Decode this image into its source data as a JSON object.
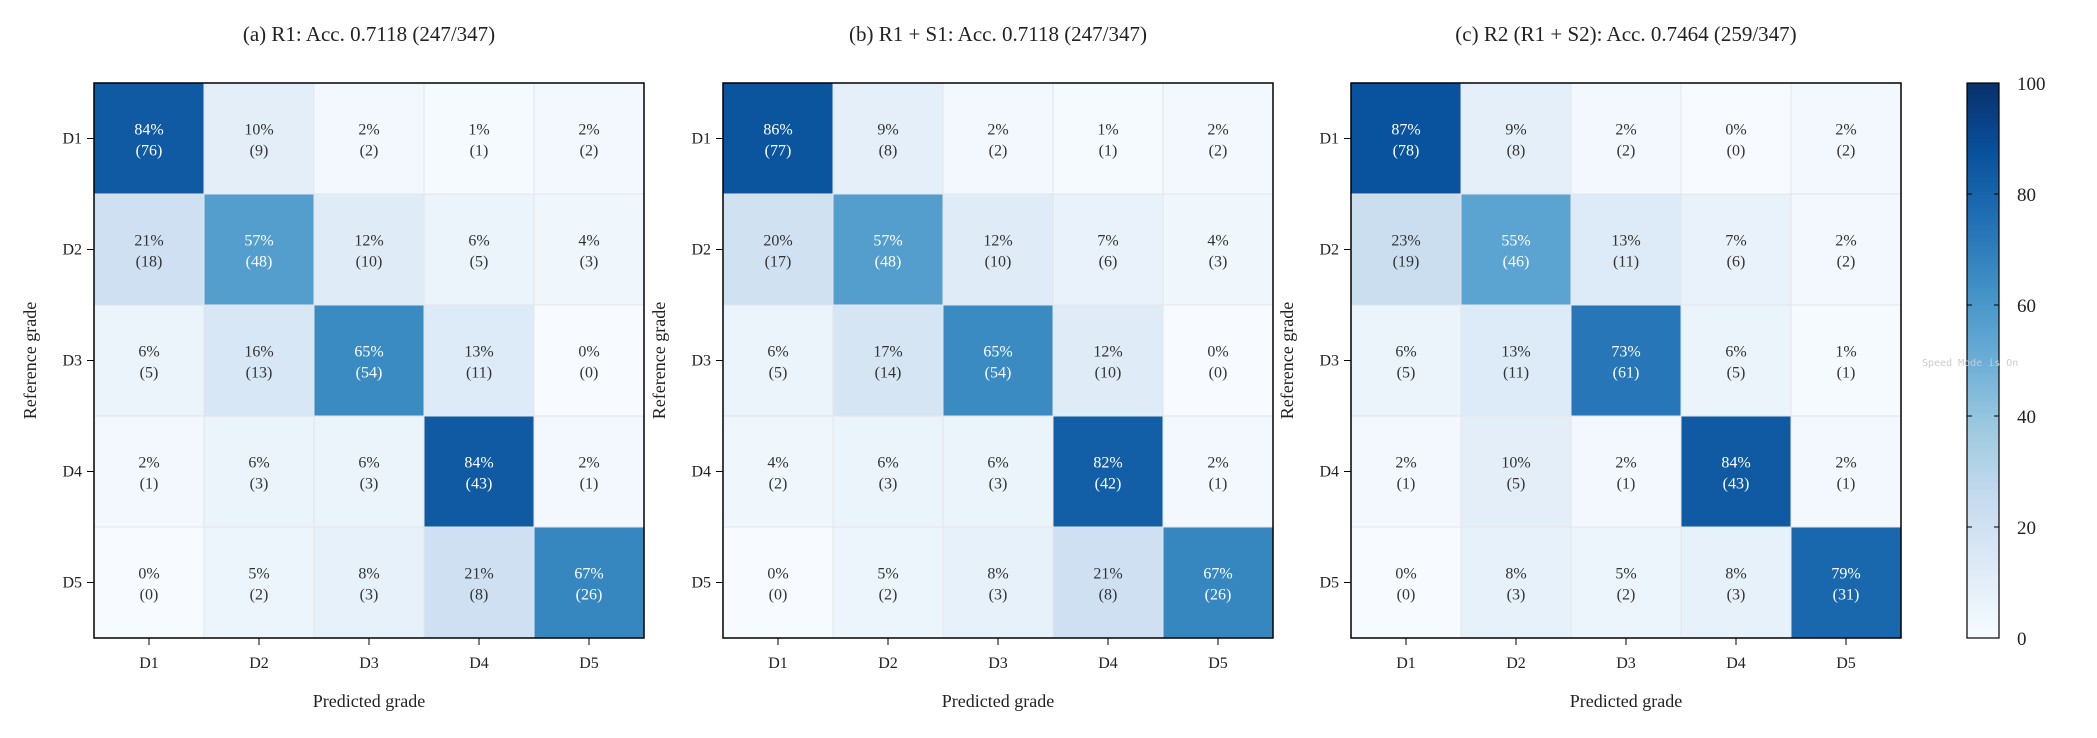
{
  "chart_data": [
    {
      "type": "heatmap",
      "title": "(a) R1: Acc. 0.7118 (247/347)",
      "xlabel": "Predicted grade",
      "ylabel": "Reference grade",
      "x_categories": [
        "D1",
        "D2",
        "D3",
        "D4",
        "D5"
      ],
      "y_categories": [
        "D1",
        "D2",
        "D3",
        "D4",
        "D5"
      ],
      "percent": [
        [
          84,
          10,
          2,
          1,
          2
        ],
        [
          21,
          57,
          12,
          6,
          4
        ],
        [
          6,
          16,
          65,
          13,
          0
        ],
        [
          2,
          6,
          6,
          84,
          2
        ],
        [
          0,
          5,
          8,
          21,
          67
        ]
      ],
      "counts": [
        [
          76,
          9,
          2,
          1,
          2
        ],
        [
          18,
          48,
          10,
          5,
          3
        ],
        [
          5,
          13,
          54,
          11,
          0
        ],
        [
          1,
          3,
          3,
          43,
          1
        ],
        [
          0,
          2,
          3,
          8,
          26
        ]
      ]
    },
    {
      "type": "heatmap",
      "title": "(b) R1 + S1: Acc. 0.7118 (247/347)",
      "xlabel": "Predicted grade",
      "ylabel": "Reference grade",
      "x_categories": [
        "D1",
        "D2",
        "D3",
        "D4",
        "D5"
      ],
      "y_categories": [
        "D1",
        "D2",
        "D3",
        "D4",
        "D5"
      ],
      "percent": [
        [
          86,
          9,
          2,
          1,
          2
        ],
        [
          20,
          57,
          12,
          7,
          4
        ],
        [
          6,
          17,
          65,
          12,
          0
        ],
        [
          4,
          6,
          6,
          82,
          2
        ],
        [
          0,
          5,
          8,
          21,
          67
        ]
      ],
      "counts": [
        [
          77,
          8,
          2,
          1,
          2
        ],
        [
          17,
          48,
          10,
          6,
          3
        ],
        [
          5,
          14,
          54,
          10,
          0
        ],
        [
          2,
          3,
          3,
          42,
          1
        ],
        [
          0,
          2,
          3,
          8,
          26
        ]
      ]
    },
    {
      "type": "heatmap",
      "title": "(c) R2 (R1 + S2): Acc. 0.7464 (259/347)",
      "xlabel": "Predicted grade",
      "ylabel": "Reference grade",
      "x_categories": [
        "D1",
        "D2",
        "D3",
        "D4",
        "D5"
      ],
      "y_categories": [
        "D1",
        "D2",
        "D3",
        "D4",
        "D5"
      ],
      "percent": [
        [
          87,
          9,
          2,
          0,
          2
        ],
        [
          23,
          55,
          13,
          7,
          2
        ],
        [
          6,
          13,
          73,
          6,
          1
        ],
        [
          2,
          10,
          2,
          84,
          2
        ],
        [
          0,
          8,
          5,
          8,
          79
        ]
      ],
      "counts": [
        [
          78,
          8,
          2,
          0,
          2
        ],
        [
          19,
          46,
          11,
          6,
          2
        ],
        [
          5,
          11,
          61,
          5,
          1
        ],
        [
          1,
          5,
          1,
          43,
          1
        ],
        [
          0,
          3,
          2,
          3,
          31
        ]
      ]
    }
  ],
  "colorbar": {
    "range": [
      0,
      100
    ],
    "ticks": [
      0,
      20,
      40,
      60,
      80,
      100
    ],
    "colors": [
      "#f7fbff",
      "#deebf7",
      "#c6dbef",
      "#9ecae1",
      "#6baed6",
      "#4292c6",
      "#2171b5",
      "#08519c",
      "#08306b"
    ]
  },
  "watermark": "Speed Mode is On"
}
